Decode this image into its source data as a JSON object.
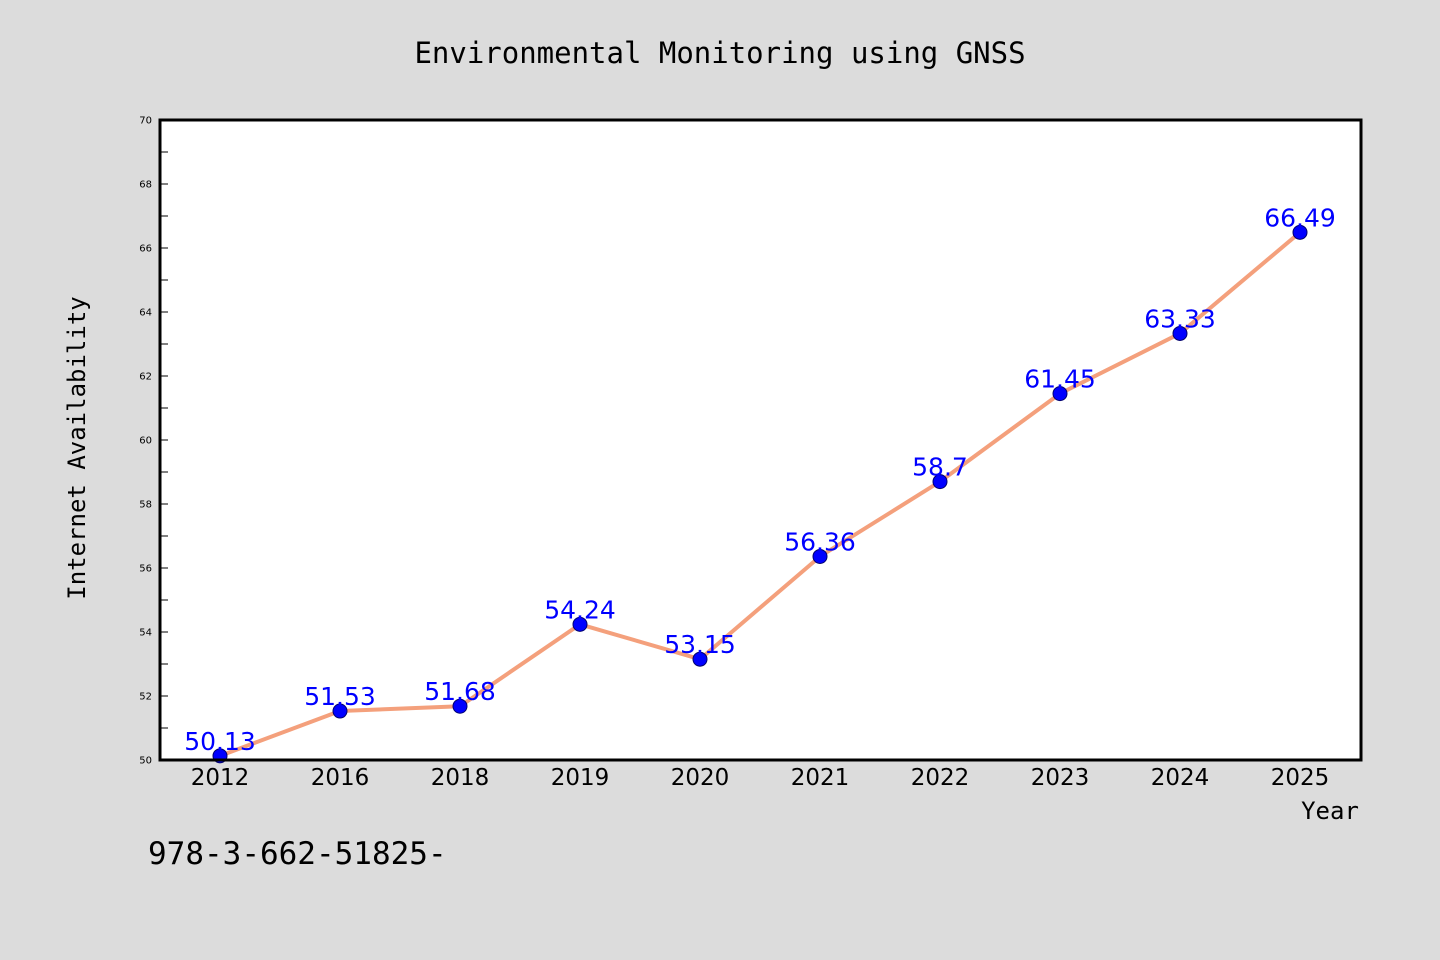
{
  "chart_data": {
    "type": "line",
    "title": "Environmental Monitoring using GNSS",
    "xlabel": "Year",
    "ylabel": "Internet Availability",
    "categories": [
      "2012",
      "2016",
      "2018",
      "2019",
      "2020",
      "2021",
      "2022",
      "2023",
      "2024",
      "2025"
    ],
    "series": [
      {
        "values": [
          50.13,
          51.53,
          51.68,
          54.24,
          53.15,
          56.36,
          58.7,
          61.45,
          63.33,
          66.49
        ],
        "labels": [
          "50.13",
          "51.53",
          "51.68",
          "54.24",
          "53.15",
          "56.36",
          "58.7",
          "61.45",
          "63.33",
          "66.49"
        ],
        "line_color": "#f4a07c",
        "marker_color": "#0000ff",
        "label_color": "#0000ff"
      }
    ],
    "ylim": [
      50,
      70
    ],
    "yticks": [
      "50",
      "52",
      "54",
      "56",
      "58",
      "60",
      "62",
      "64",
      "66",
      "68",
      "70"
    ],
    "grid": false,
    "legend": "none"
  },
  "footer": {
    "text": "978-3-662-51825-"
  }
}
